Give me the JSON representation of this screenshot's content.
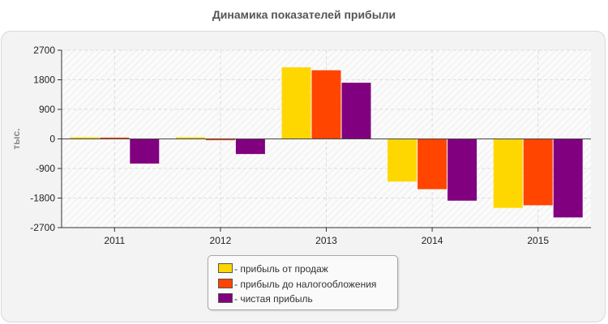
{
  "chart_data": {
    "type": "bar",
    "title": "Динамика показателей прибыли",
    "ylabel": "тыс.",
    "xlabel": "",
    "categories": [
      "2011",
      "2012",
      "2013",
      "2014",
      "2015"
    ],
    "ylim": [
      -2700,
      2700
    ],
    "yticks": [
      2700,
      1800,
      900,
      0,
      -900,
      -1800,
      -2700
    ],
    "ytick_labels": [
      "2700",
      "1800",
      "900",
      "0",
      "-900",
      "-1800",
      "-2700"
    ],
    "grid": true,
    "legend_position": "bottom",
    "series": [
      {
        "name": "- прибыль от продаж",
        "color": "#FFD700",
        "values": [
          50,
          50,
          2180,
          -1300,
          -2100
        ]
      },
      {
        "name": "- прибыль до налогообложения",
        "color": "#FF4500",
        "values": [
          40,
          -40,
          2090,
          -1530,
          -2020
        ]
      },
      {
        "name": "- чистая прибыль",
        "color": "#800080",
        "values": [
          -750,
          -460,
          1710,
          -1880,
          -2390
        ]
      }
    ]
  }
}
